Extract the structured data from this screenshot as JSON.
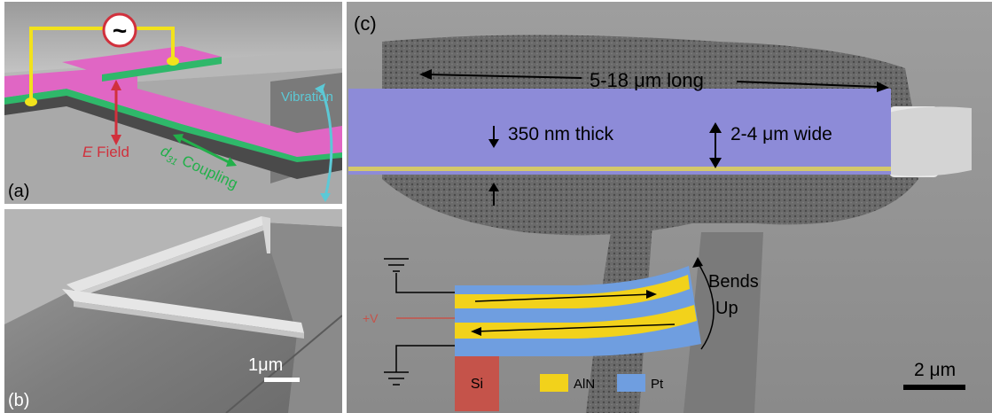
{
  "figure": {
    "panel_a": {
      "label": "(a)",
      "vibration": "Vibration",
      "e_field_italic": "E",
      "e_field_rest": " Field",
      "d31_main": "d",
      "d31_sub": "31",
      "coupling": " Coupling",
      "source_symbol": "~",
      "colors": {
        "top_layer": "#e066c4",
        "mid_layer": "#2fb86a",
        "wire": "#f2e21c",
        "field_arrow": "#d1303c",
        "vib_arrow": "#5cc9d6",
        "coupling_arrow": "#22b04a"
      }
    },
    "panel_b": {
      "label": "(b)",
      "scale": "1μm"
    },
    "panel_c": {
      "label": "(c)",
      "length": "5-18 μm long",
      "thickness": "350 nm thick",
      "width": "2-4 μm wide",
      "bends": "Bends",
      "up": "Up",
      "voltage": "+V",
      "si": "Si",
      "legend_aln": "AlN",
      "legend_pt": "Pt",
      "scale": "2 μm",
      "colors": {
        "beam": "#8d8bd8",
        "aln": "#f2d21b",
        "pt": "#6f9ee0",
        "si": "#c5534a",
        "voltage": "#c5534a"
      }
    }
  }
}
